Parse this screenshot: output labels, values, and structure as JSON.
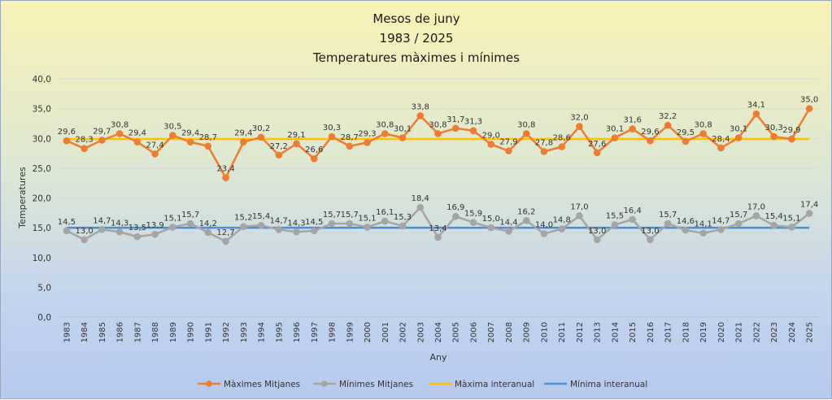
{
  "chart_data": {
    "type": "line",
    "title_lines": [
      "Mesos de juny",
      "1983 / 2025",
      "Temperatures màximes i mínimes"
    ],
    "xlabel": "Any",
    "ylabel": "Temperatures",
    "ylim": [
      0,
      40
    ],
    "yticks": [
      0,
      5,
      10,
      15,
      20,
      25,
      30,
      35,
      40
    ],
    "ytick_labels": [
      "0,0",
      "5,0",
      "10,0",
      "15,0",
      "20,0",
      "25,0",
      "30,0",
      "35,0",
      "40,0"
    ],
    "grid": true,
    "legend_position": "bottom",
    "x": [
      "1983",
      "1984",
      "1985",
      "1986",
      "1987",
      "1988",
      "1989",
      "1990",
      "1991",
      "1992",
      "1993",
      "1994",
      "1995",
      "1996",
      "1997",
      "1998",
      "1999",
      "2000",
      "2001",
      "2002",
      "2003",
      "2004",
      "2005",
      "2006",
      "2007",
      "2008",
      "2009",
      "2010",
      "2011",
      "2012",
      "2013",
      "2014",
      "2015",
      "2016",
      "2017",
      "2018",
      "2019",
      "2020",
      "2021",
      "2022",
      "2023",
      "2024",
      "2025"
    ],
    "series": [
      {
        "name": "Màximes Mitjanes",
        "color": "#ed7d31",
        "marker": true,
        "values": [
          29.6,
          28.3,
          29.7,
          30.8,
          29.4,
          27.4,
          30.5,
          29.4,
          28.7,
          23.4,
          29.4,
          30.2,
          27.2,
          29.1,
          26.6,
          30.3,
          28.7,
          29.3,
          30.8,
          30.1,
          33.8,
          30.8,
          31.7,
          31.3,
          29.0,
          27.9,
          30.8,
          27.8,
          28.6,
          32.0,
          27.6,
          30.1,
          31.6,
          29.6,
          32.2,
          29.5,
          30.8,
          28.4,
          30.1,
          34.1,
          30.3,
          29.9,
          35.0
        ],
        "labels": [
          "29,6",
          "28,3",
          "29,7",
          "30,8",
          "29,4",
          "27,4",
          "30,5",
          "29,4",
          "28,7",
          "23,4",
          "29,4",
          "30,2",
          "27,2",
          "29,1",
          "26,6",
          "30,3",
          "28,7",
          "29,3",
          "30,8",
          "30,1",
          "33,8",
          "30,8",
          "31,7",
          "31,3",
          "29,0",
          "27,9",
          "30,8",
          "27,8",
          "28,6",
          "32,0",
          "27,6",
          "30,1",
          "31,6",
          "29,6",
          "32,2",
          "29,5",
          "30,8",
          "28,4",
          "30,1",
          "34,1",
          "30,3",
          "29,9",
          "35,0"
        ]
      },
      {
        "name": "Mínimes Mitjanes",
        "color": "#a5a5a5",
        "marker": true,
        "values": [
          14.5,
          13.0,
          14.7,
          14.3,
          13.5,
          13.9,
          15.1,
          15.7,
          14.2,
          12.7,
          15.2,
          15.4,
          14.7,
          14.3,
          14.5,
          15.7,
          15.7,
          15.1,
          16.1,
          15.3,
          18.4,
          13.4,
          16.9,
          15.9,
          15.0,
          14.4,
          16.2,
          14.0,
          14.8,
          17.0,
          13.0,
          15.5,
          16.4,
          13.0,
          15.7,
          14.6,
          14.1,
          14.7,
          15.7,
          17.0,
          15.4,
          15.1,
          17.4
        ],
        "labels": [
          "14,5",
          "13,0",
          "14,7",
          "14,3",
          "13,5",
          "13,9",
          "15,1",
          "15,7",
          "14,2",
          "12,7",
          "15,2",
          "15,4",
          "14,7",
          "14,3",
          "14,5",
          "15,7",
          "15,7",
          "15,1",
          "16,1",
          "15,3",
          "18,4",
          "13,4",
          "16,9",
          "15,9",
          "15,0",
          "14,4",
          "16,2",
          "14,0",
          "14,8",
          "17,0",
          "13,0",
          "15,5",
          "16,4",
          "13,0",
          "15,7",
          "14,6",
          "14,1",
          "14,7",
          "15,7",
          "17,0",
          "15,4",
          "15,1",
          "17,4"
        ]
      },
      {
        "name": "Màxima interanual",
        "color": "#ffc000",
        "marker": false,
        "constant": 29.9
      },
      {
        "name": "Mínima interanual",
        "color": "#4a8fd0",
        "marker": false,
        "constant": 15.0
      }
    ]
  }
}
